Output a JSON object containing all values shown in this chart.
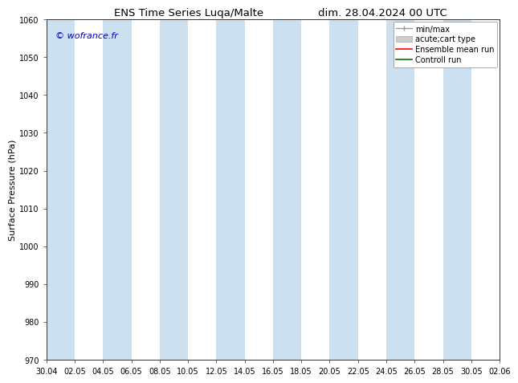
{
  "title_left": "ENS Time Series Luqa/Malte",
  "title_right": "dim. 28.04.2024 00 UTC",
  "ylabel": "Surface Pressure (hPa)",
  "ylim": [
    970,
    1060
  ],
  "yticks": [
    970,
    980,
    990,
    1000,
    1010,
    1020,
    1030,
    1040,
    1050,
    1060
  ],
  "xtick_labels": [
    "30.04",
    "02.05",
    "04.05",
    "06.05",
    "08.05",
    "10.05",
    "12.05",
    "14.05",
    "16.05",
    "18.05",
    "20.05",
    "22.05",
    "24.05",
    "26.05",
    "28.05",
    "30.05",
    "02.06"
  ],
  "watermark": "© wofrance.fr",
  "watermark_color": "#0000bb",
  "background_color": "#ffffff",
  "shaded_band_color": "#cce0f0",
  "legend_entries": [
    {
      "label": "min/max",
      "color": "#999999",
      "lw": 1.0
    },
    {
      "label": "acute;cart type",
      "color": "#cccccc",
      "lw": 4
    },
    {
      "label": "Ensemble mean run",
      "color": "#ff0000",
      "lw": 1.2
    },
    {
      "label": "Controll run",
      "color": "#007700",
      "lw": 1.2
    }
  ],
  "title_fontsize": 9.5,
  "tick_fontsize": 7,
  "ylabel_fontsize": 8,
  "legend_fontsize": 7,
  "watermark_fontsize": 8
}
